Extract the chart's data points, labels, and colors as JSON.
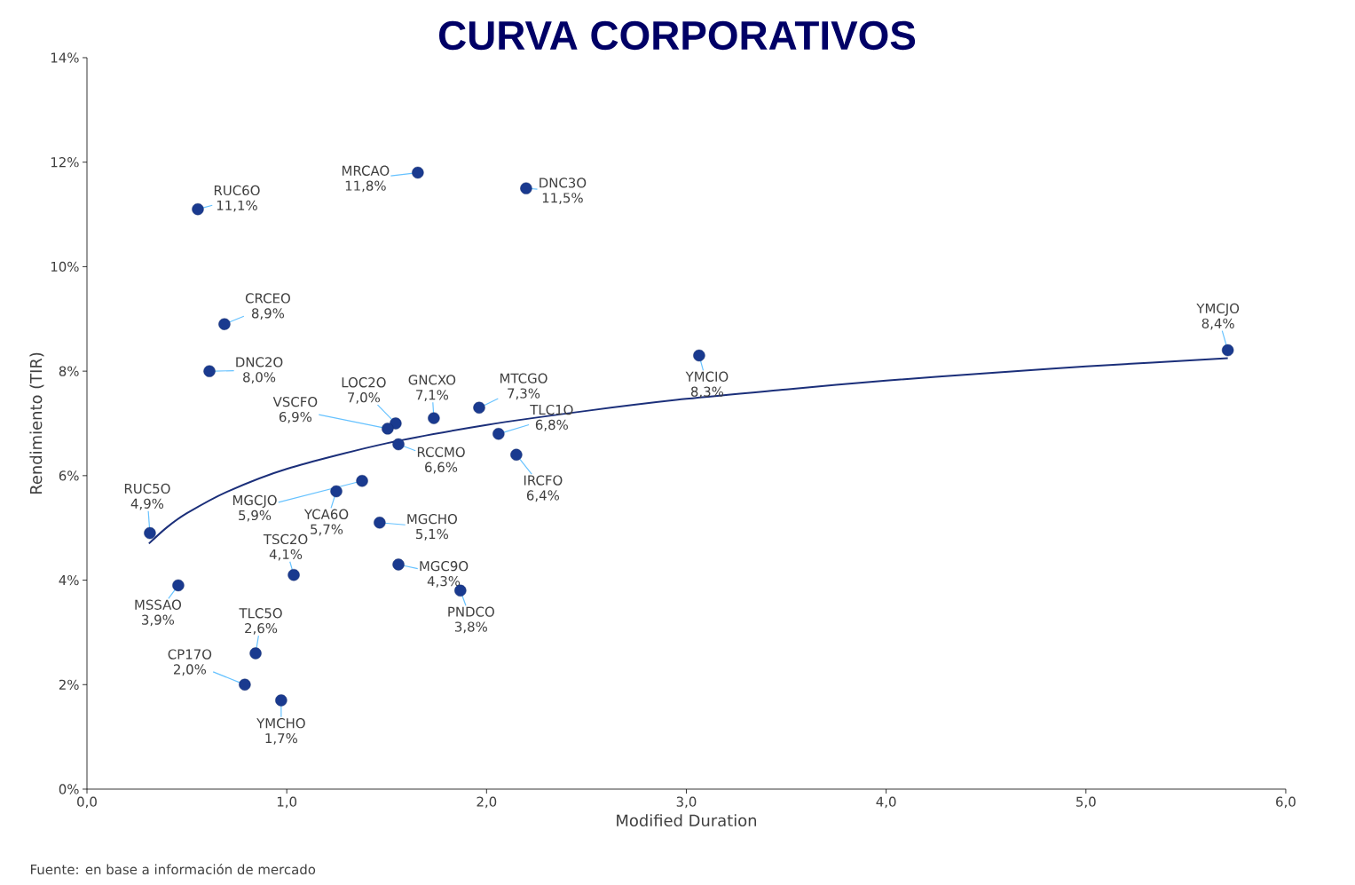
{
  "chart_data": {
    "type": "scatter",
    "title": "CURVA CORPORATIVOS",
    "xlabel": "Modified Duration",
    "ylabel": "Rendimiento (TIR)",
    "xlim": [
      0,
      6
    ],
    "ylim": [
      0,
      14
    ],
    "xticks": [
      {
        "value": 0,
        "label": "0,0"
      },
      {
        "value": 1,
        "label": "1,0"
      },
      {
        "value": 2,
        "label": "2,0"
      },
      {
        "value": 3,
        "label": "3,0"
      },
      {
        "value": 4,
        "label": "4,0"
      },
      {
        "value": 5,
        "label": "5,0"
      },
      {
        "value": 6,
        "label": "6,0"
      }
    ],
    "yticks": [
      {
        "value": 0,
        "label": "0%"
      },
      {
        "value": 2,
        "label": "2%"
      },
      {
        "value": 4,
        "label": "4%"
      },
      {
        "value": 6,
        "label": "6%"
      },
      {
        "value": 8,
        "label": "8%"
      },
      {
        "value": 10,
        "label": "10%"
      },
      {
        "value": 12,
        "label": "12%"
      },
      {
        "value": 14,
        "label": "14%"
      }
    ],
    "series": [
      {
        "type": "scatter",
        "color": "#1a3a8f",
        "marker": "circle",
        "x": [
          0.555,
          1.656,
          2.198,
          0.688,
          0.613,
          5.71,
          3.064,
          1.963,
          1.736,
          1.545,
          1.505,
          1.559,
          2.06,
          2.149,
          1.377,
          1.248,
          1.465,
          1.559,
          1.869,
          0.315,
          0.457,
          1.035,
          0.844,
          0.79,
          0.972
        ],
        "values": [
          11.1,
          11.8,
          11.5,
          8.9,
          8.0,
          8.4,
          8.3,
          7.3,
          7.1,
          7.0,
          6.9,
          6.6,
          6.8,
          6.4,
          5.9,
          5.7,
          5.1,
          4.3,
          3.8,
          4.9,
          3.9,
          4.1,
          2.6,
          2.0,
          1.7
        ],
        "value_labels": [
          "11,1%",
          "11,8%",
          "11,5%",
          "8,9%",
          "8,0%",
          "8,4%",
          "8,3%",
          "7,3%",
          "7,1%",
          "7,0%",
          "6,9%",
          "6,6%",
          "6,8%",
          "6,4%",
          "5,9%",
          "5,7%",
          "5,1%",
          "4,3%",
          "3,8%",
          "4,9%",
          "3,9%",
          "4,1%",
          "2,6%",
          "2,0%",
          "1,7%"
        ]
      },
      {
        "type": "line",
        "color": "#1b2f7a",
        "marker": "none",
        "line_style": "solid",
        "x": [
          0.31,
          0.4,
          0.5,
          0.7,
          1,
          1.5,
          2,
          2.5,
          3,
          3.5,
          4,
          4.5,
          5,
          5.71
        ],
        "values": [
          4.7,
          5.01,
          5.28,
          5.69,
          6.13,
          6.62,
          6.97,
          7.24,
          7.47,
          7.65,
          7.82,
          7.96,
          8.09,
          8.25
        ]
      }
    ],
    "annotations": [
      "Fuente: en base a información de mercado",
      {
        "text": "RUC6O",
        "x": 0.555,
        "y": 11.1
      },
      {
        "text": "MRCAO",
        "x": 1.656,
        "y": 11.8
      },
      {
        "text": "DNC3O",
        "x": 2.198,
        "y": 11.5
      },
      {
        "text": "CRCEO",
        "x": 0.688,
        "y": 8.9
      },
      {
        "text": "DNC2O",
        "x": 0.613,
        "y": 8.0
      },
      {
        "text": "YMCJO",
        "x": 5.71,
        "y": 8.4
      },
      {
        "text": "YMCIO",
        "x": 3.064,
        "y": 8.3
      },
      {
        "text": "MTCGO",
        "x": 1.963,
        "y": 7.3
      },
      {
        "text": "GNCXO",
        "x": 1.736,
        "y": 7.1
      },
      {
        "text": "LOC2O",
        "x": 1.545,
        "y": 7.0
      },
      {
        "text": "VSCFO",
        "x": 1.505,
        "y": 6.9
      },
      {
        "text": "RCCMO",
        "x": 1.559,
        "y": 6.6
      },
      {
        "text": "TLC1O",
        "x": 2.06,
        "y": 6.8
      },
      {
        "text": "IRCFO",
        "x": 2.149,
        "y": 6.4
      },
      {
        "text": "MGCJO",
        "x": 1.377,
        "y": 5.9
      },
      {
        "text": "YCA6O",
        "x": 1.248,
        "y": 5.7
      },
      {
        "text": "MGCHO",
        "x": 1.465,
        "y": 5.1
      },
      {
        "text": "MGC9O",
        "x": 1.559,
        "y": 4.3
      },
      {
        "text": "PNDCO",
        "x": 1.869,
        "y": 3.8
      },
      {
        "text": "RUC5O",
        "x": 0.315,
        "y": 4.9
      },
      {
        "text": "MSSAO",
        "x": 0.457,
        "y": 3.9
      },
      {
        "text": "TSC2O",
        "x": 1.035,
        "y": 4.1
      },
      {
        "text": "TLC5O",
        "x": 0.844,
        "y": 2.6
      },
      {
        "text": "CP17O",
        "x": 0.79,
        "y": 2.0
      },
      {
        "text": "YMCHO",
        "x": 0.972,
        "y": 1.7
      }
    ]
  }
}
